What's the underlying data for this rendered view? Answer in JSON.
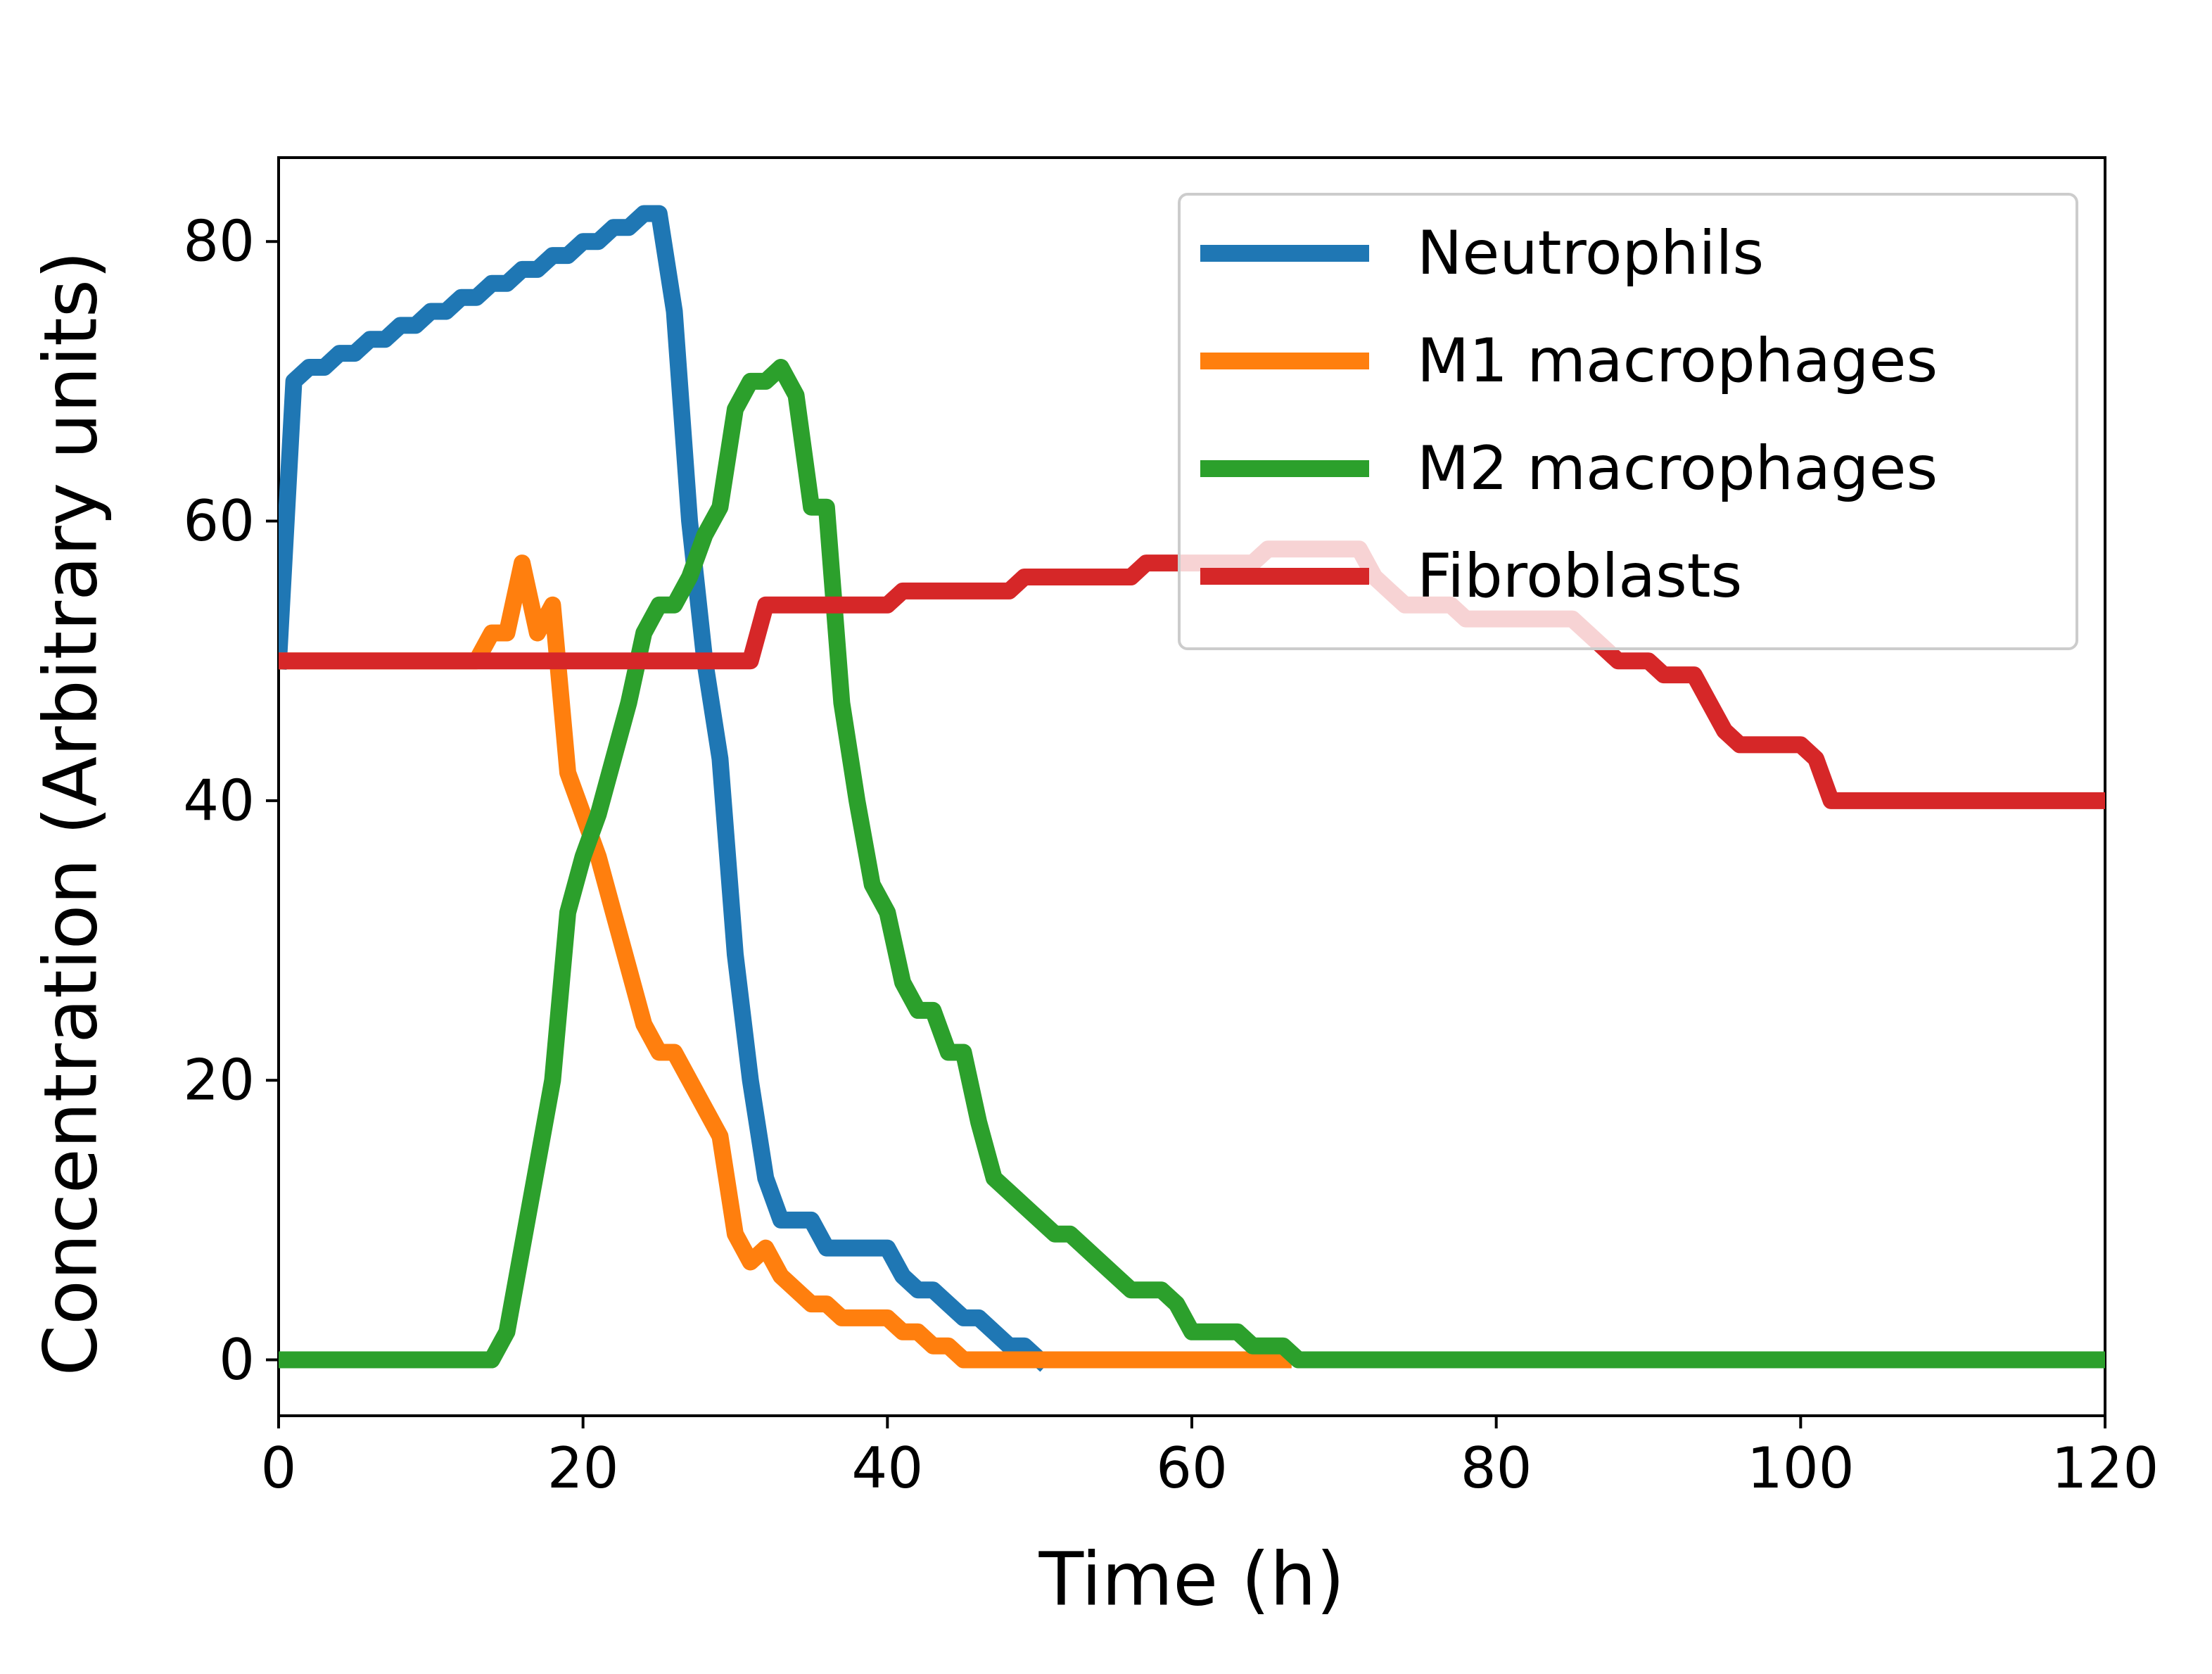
{
  "chart_data": {
    "type": "line",
    "title": "",
    "xlabel": "Time (h)",
    "ylabel": "Concentration (Arbitrary units)",
    "xlim": [
      0,
      120
    ],
    "ylim": [
      -4,
      86
    ],
    "xticks": [
      0,
      20,
      40,
      60,
      80,
      100,
      120
    ],
    "yticks": [
      0,
      20,
      40,
      60,
      80
    ],
    "grid": false,
    "legend_position": "top-right",
    "series": [
      {
        "name": "Neutrophils",
        "color": "#1f77b4",
        "points": [
          [
            0,
            50
          ],
          [
            1,
            70
          ],
          [
            2,
            71
          ],
          [
            3,
            71
          ],
          [
            4,
            72
          ],
          [
            5,
            72
          ],
          [
            6,
            73
          ],
          [
            7,
            73
          ],
          [
            8,
            74
          ],
          [
            9,
            74
          ],
          [
            10,
            75
          ],
          [
            11,
            75
          ],
          [
            12,
            76
          ],
          [
            13,
            76
          ],
          [
            14,
            77
          ],
          [
            15,
            77
          ],
          [
            16,
            78
          ],
          [
            17,
            78
          ],
          [
            18,
            79
          ],
          [
            19,
            79
          ],
          [
            20,
            80
          ],
          [
            21,
            80
          ],
          [
            22,
            81
          ],
          [
            23,
            81
          ],
          [
            24,
            82
          ],
          [
            25,
            82
          ],
          [
            26,
            75
          ],
          [
            27,
            60
          ],
          [
            28,
            50
          ],
          [
            29,
            43
          ],
          [
            30,
            29
          ],
          [
            31,
            20
          ],
          [
            32,
            13
          ],
          [
            33,
            10
          ],
          [
            34,
            10
          ],
          [
            35,
            10
          ],
          [
            36,
            8
          ],
          [
            37,
            8
          ],
          [
            38,
            8
          ],
          [
            39,
            8
          ],
          [
            40,
            8
          ],
          [
            41,
            6
          ],
          [
            42,
            5
          ],
          [
            43,
            5
          ],
          [
            44,
            4
          ],
          [
            45,
            3
          ],
          [
            46,
            3
          ],
          [
            47,
            2
          ],
          [
            48,
            1
          ],
          [
            49,
            1
          ],
          [
            50,
            0
          ]
        ]
      },
      {
        "name": "M1 macrophages",
        "color": "#ff7f0e",
        "points": [
          [
            0,
            50
          ],
          [
            12,
            50
          ],
          [
            13,
            50
          ],
          [
            14,
            52
          ],
          [
            15,
            52
          ],
          [
            16,
            57
          ],
          [
            17,
            52
          ],
          [
            18,
            54
          ],
          [
            19,
            42
          ],
          [
            20,
            39
          ],
          [
            21,
            36
          ],
          [
            22,
            32
          ],
          [
            23,
            28
          ],
          [
            24,
            24
          ],
          [
            25,
            22
          ],
          [
            26,
            22
          ],
          [
            27,
            20
          ],
          [
            28,
            18
          ],
          [
            29,
            16
          ],
          [
            30,
            9
          ],
          [
            31,
            7
          ],
          [
            32,
            8
          ],
          [
            33,
            6
          ],
          [
            34,
            5
          ],
          [
            35,
            4
          ],
          [
            36,
            4
          ],
          [
            37,
            3
          ],
          [
            38,
            3
          ],
          [
            39,
            3
          ],
          [
            40,
            3
          ],
          [
            41,
            2
          ],
          [
            42,
            2
          ],
          [
            43,
            1
          ],
          [
            44,
            1
          ],
          [
            45,
            0
          ],
          [
            66,
            0
          ]
        ]
      },
      {
        "name": "M2 macrophages",
        "color": "#2ca02c",
        "points": [
          [
            0,
            0
          ],
          [
            13,
            0
          ],
          [
            14,
            0
          ],
          [
            15,
            2
          ],
          [
            16,
            8
          ],
          [
            17,
            14
          ],
          [
            18,
            20
          ],
          [
            19,
            32
          ],
          [
            20,
            36
          ],
          [
            21,
            39
          ],
          [
            22,
            43
          ],
          [
            23,
            47
          ],
          [
            24,
            52
          ],
          [
            25,
            54
          ],
          [
            26,
            54
          ],
          [
            27,
            56
          ],
          [
            28,
            59
          ],
          [
            29,
            61
          ],
          [
            30,
            68
          ],
          [
            31,
            70
          ],
          [
            32,
            70
          ],
          [
            33,
            71
          ],
          [
            34,
            69
          ],
          [
            35,
            61
          ],
          [
            36,
            61
          ],
          [
            37,
            47
          ],
          [
            38,
            40
          ],
          [
            39,
            34
          ],
          [
            40,
            32
          ],
          [
            41,
            27
          ],
          [
            42,
            25
          ],
          [
            43,
            25
          ],
          [
            44,
            22
          ],
          [
            45,
            22
          ],
          [
            46,
            17
          ],
          [
            47,
            13
          ],
          [
            48,
            12
          ],
          [
            49,
            11
          ],
          [
            50,
            10
          ],
          [
            51,
            9
          ],
          [
            52,
            9
          ],
          [
            53,
            8
          ],
          [
            54,
            7
          ],
          [
            55,
            6
          ],
          [
            56,
            5
          ],
          [
            57,
            5
          ],
          [
            58,
            5
          ],
          [
            59,
            4
          ],
          [
            60,
            2
          ],
          [
            61,
            2
          ],
          [
            62,
            2
          ],
          [
            63,
            2
          ],
          [
            64,
            1
          ],
          [
            65,
            1
          ],
          [
            66,
            1
          ],
          [
            67,
            0
          ],
          [
            120,
            0
          ]
        ]
      },
      {
        "name": "Fibroblasts",
        "color": "#d62728",
        "points": [
          [
            0,
            50
          ],
          [
            31,
            50
          ],
          [
            32,
            54
          ],
          [
            40,
            54
          ],
          [
            41,
            55
          ],
          [
            48,
            55
          ],
          [
            49,
            56
          ],
          [
            56,
            56
          ],
          [
            57,
            57
          ],
          [
            64,
            57
          ],
          [
            65,
            58
          ],
          [
            71,
            58
          ],
          [
            72,
            56
          ],
          [
            73,
            55
          ],
          [
            74,
            54
          ],
          [
            77,
            54
          ],
          [
            78,
            53
          ],
          [
            85,
            53
          ],
          [
            86,
            52
          ],
          [
            87,
            51
          ],
          [
            88,
            50
          ],
          [
            90,
            50
          ],
          [
            91,
            49
          ],
          [
            93,
            49
          ],
          [
            94,
            47
          ],
          [
            95,
            45
          ],
          [
            96,
            44
          ],
          [
            100,
            44
          ],
          [
            101,
            43
          ],
          [
            102,
            40
          ],
          [
            120,
            40
          ]
        ]
      }
    ]
  }
}
